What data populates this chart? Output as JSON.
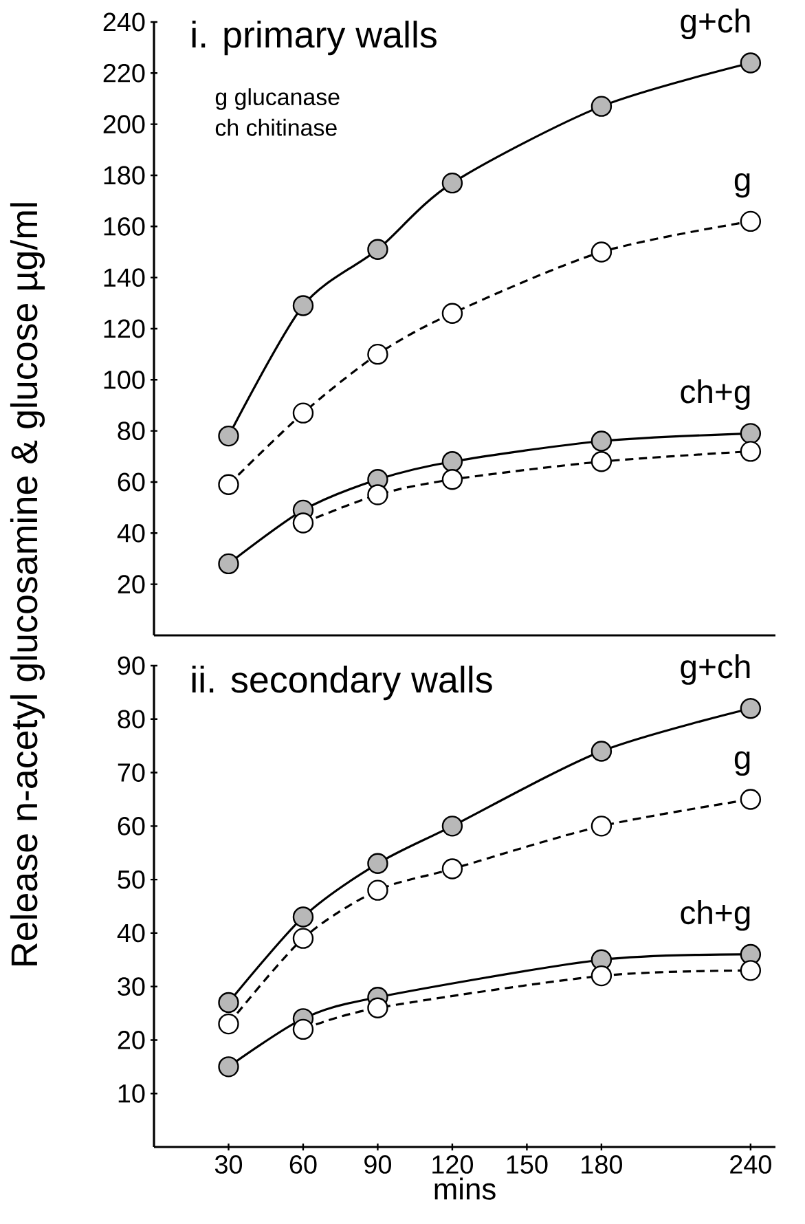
{
  "chart_data": [
    {
      "type": "line",
      "title": "i. primary walls",
      "ylabel": "Release n-acetyl glucosamine & glucose µg/ml",
      "annotations": [
        "g glucanase",
        "ch chitinase"
      ],
      "xlim": [
        0,
        250
      ],
      "ylim": [
        0,
        240
      ],
      "yticks": [
        20,
        40,
        60,
        80,
        100,
        120,
        140,
        160,
        180,
        200,
        220,
        240
      ],
      "tick_labels": "y",
      "marker": "circle",
      "x": [
        30,
        60,
        90,
        120,
        180,
        240
      ],
      "series": [
        {
          "name": "g+ch",
          "color": "#000000",
          "line_style": "solid",
          "values": [
            78,
            129,
            151,
            177,
            207,
            224
          ]
        },
        {
          "name": "g",
          "color": "#000000",
          "line_style": "dashed",
          "values": [
            59,
            87,
            110,
            126,
            150,
            162
          ]
        },
        {
          "name": "ch+g",
          "color": "#000000",
          "line_style": "solid",
          "values": [
            28,
            49,
            61,
            68,
            76,
            79
          ]
        },
        {
          "color": "#000000",
          "line_style": "dashed",
          "values": [
            null,
            44,
            55,
            61,
            68,
            72
          ]
        }
      ]
    },
    {
      "type": "line",
      "title": "ii. secondary walls",
      "xlabel": "mins",
      "xlim": [
        0,
        250
      ],
      "ylim": [
        0,
        90
      ],
      "xticks": [
        30,
        60,
        90,
        120,
        150,
        180,
        240
      ],
      "yticks": [
        10,
        20,
        30,
        40,
        50,
        60,
        70,
        80,
        90
      ],
      "marker": "circle",
      "x": [
        30,
        60,
        90,
        120,
        180,
        240
      ],
      "series": [
        {
          "name": "g+ch",
          "color": "#000000",
          "line_style": "solid",
          "values": [
            27,
            43,
            53,
            60,
            74,
            82
          ]
        },
        {
          "name": "g",
          "color": "#000000",
          "line_style": "dashed",
          "values": [
            23,
            39,
            48,
            52,
            60,
            65
          ]
        },
        {
          "name": "ch+g",
          "color": "#000000",
          "line_style": "solid",
          "values": [
            15,
            24,
            28,
            null,
            35,
            36
          ]
        },
        {
          "color": "#000000",
          "line_style": "dashed",
          "values": [
            null,
            22,
            26,
            null,
            32,
            33
          ]
        }
      ]
    }
  ]
}
